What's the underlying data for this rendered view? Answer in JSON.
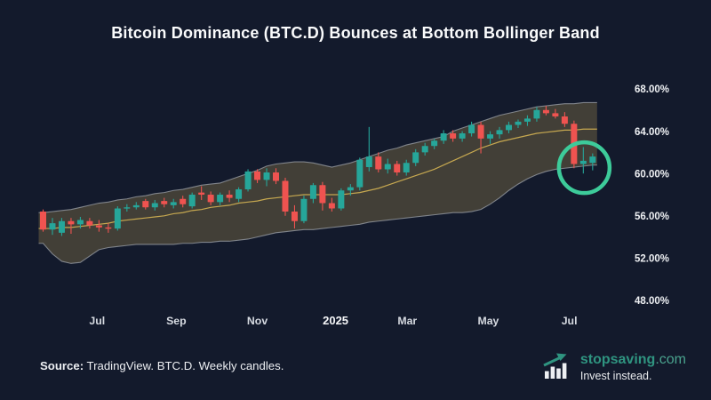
{
  "title": "Bitcoin Dominance (BTC.D) Bounces at Bottom Bollinger Band",
  "source": {
    "label": "Source:",
    "text": " TradingView. BTC.D. Weekly candles."
  },
  "brand": {
    "name": "stopsaving",
    "tld": ".com",
    "tagline": "Invest instead.",
    "logo_icon": "bar-chart-up-arrow-icon",
    "name_color": "#2f9480",
    "tld_color": "#4aa38e"
  },
  "colors": {
    "background": "#131a2c",
    "candle_up": "#26a69a",
    "candle_down": "#ef5350",
    "band_fill": "#454138",
    "band_edge": "#8f949b",
    "band_basis": "#c6a850",
    "axis_text": "#eef0f3",
    "month_text": "#d6dae1",
    "year_text": "#f5f6f8",
    "annotation": "#3dcb9a"
  },
  "chart_data": {
    "type": "candlestick_bollinger",
    "symbol": "BTC.D",
    "timeframe": "weekly",
    "title": "Bitcoin Dominance (BTC.D) Bounces at Bottom Bollinger Band",
    "grid": false,
    "y_axis_side": "right",
    "y_axis_range": [
      48,
      68
    ],
    "y_ticks": [
      {
        "label": "68.00%",
        "value": 68
      },
      {
        "label": "64.00%",
        "value": 64
      },
      {
        "label": "60.00%",
        "value": 60
      },
      {
        "label": "56.00%",
        "value": 56
      },
      {
        "label": "52.00%",
        "value": 52
      },
      {
        "label": "48.00%",
        "value": 48
      }
    ],
    "x_ticks": [
      {
        "label": "Jul",
        "i": 5.8,
        "year": false
      },
      {
        "label": "Sep",
        "i": 14.3,
        "year": false
      },
      {
        "label": "Nov",
        "i": 23.0,
        "year": false
      },
      {
        "label": "2025",
        "i": 31.4,
        "year": true
      },
      {
        "label": "Mar",
        "i": 39.1,
        "year": false
      },
      {
        "label": "May",
        "i": 47.8,
        "year": false
      },
      {
        "label": "Jul",
        "i": 56.5,
        "year": false
      }
    ],
    "candles": {
      "open": [
        56.4,
        54.7,
        54.4,
        55.5,
        55.2,
        55.5,
        55.1,
        54.9,
        54.8,
        56.7,
        56.8,
        57.4,
        56.8,
        57.4,
        57.0,
        57.6,
        56.9,
        58.2,
        58.0,
        57.3,
        58.0,
        57.6,
        58.5,
        60.2,
        59.4,
        60.1,
        59.3,
        56.4,
        55.5,
        57.6,
        58.9,
        57.2,
        56.7,
        58.4,
        58.7,
        60.6,
        61.6,
        60.4,
        60.9,
        60.1,
        61.0,
        62.0,
        62.6,
        63.1,
        63.8,
        63.3,
        63.8,
        64.6,
        63.3,
        63.7,
        64.1,
        64.6,
        64.9,
        65.2,
        66.0,
        65.7,
        65.4,
        64.7,
        60.9,
        61.0
      ],
      "high": [
        56.6,
        55.8,
        55.8,
        55.8,
        55.9,
        55.8,
        55.6,
        55.3,
        56.9,
        57.1,
        57.3,
        57.6,
        57.5,
        57.7,
        57.6,
        57.9,
        58.2,
        58.8,
        58.3,
        58.2,
        58.4,
        58.7,
        60.4,
        60.4,
        60.5,
        60.5,
        59.6,
        57.0,
        57.9,
        59.1,
        59.2,
        57.7,
        58.6,
        59.0,
        61.5,
        64.4,
        62.0,
        61.4,
        61.2,
        61.3,
        62.3,
        62.9,
        63.3,
        64.1,
        64.1,
        64.0,
        64.9,
        64.9,
        64.0,
        64.4,
        64.9,
        65.1,
        65.5,
        66.3,
        66.4,
        66.1,
        65.8,
        65.0,
        62.5,
        61.9
      ],
      "low": [
        54.5,
        54.2,
        54.1,
        54.3,
        54.8,
        54.8,
        54.5,
        54.4,
        54.6,
        56.4,
        56.6,
        56.6,
        56.5,
        56.8,
        56.7,
        56.8,
        56.7,
        57.5,
        57.0,
        57.0,
        57.3,
        57.3,
        58.3,
        59.1,
        58.8,
        59.0,
        56.0,
        54.8,
        55.3,
        57.2,
        56.5,
        56.4,
        56.5,
        57.9,
        58.4,
        60.2,
        60.1,
        60.0,
        59.8,
        59.8,
        60.7,
        61.7,
        62.3,
        62.8,
        63.0,
        63.0,
        63.5,
        61.9,
        62.8,
        63.3,
        63.8,
        64.3,
        64.5,
        64.9,
        65.5,
        65.2,
        64.4,
        60.5,
        60.0,
        60.3
      ],
      "close": [
        54.7,
        55.3,
        55.5,
        55.2,
        55.6,
        55.1,
        54.9,
        54.8,
        56.7,
        56.8,
        57.0,
        56.8,
        57.2,
        57.1,
        57.3,
        57.1,
        58.0,
        58.0,
        57.3,
        58.0,
        57.7,
        58.5,
        60.2,
        59.4,
        60.1,
        59.3,
        56.4,
        55.5,
        57.6,
        58.9,
        57.2,
        56.7,
        58.4,
        58.7,
        61.3,
        61.6,
        60.4,
        60.9,
        60.1,
        61.0,
        62.0,
        62.6,
        63.1,
        63.8,
        63.3,
        63.8,
        64.6,
        63.3,
        63.7,
        64.1,
        64.6,
        64.9,
        65.2,
        66.0,
        65.7,
        65.4,
        64.7,
        60.9,
        61.2,
        61.6
      ]
    },
    "bollinger": {
      "upper": [
        56.3,
        56.4,
        56.5,
        56.6,
        56.8,
        57.0,
        57.2,
        57.3,
        57.5,
        57.6,
        57.8,
        57.9,
        58.1,
        58.2,
        58.4,
        58.5,
        58.7,
        58.9,
        59.0,
        59.1,
        59.4,
        59.7,
        60.0,
        60.3,
        60.7,
        60.9,
        61.0,
        61.1,
        61.1,
        61.0,
        60.8,
        60.6,
        60.8,
        61.0,
        61.3,
        61.6,
        61.9,
        62.2,
        62.4,
        62.7,
        62.9,
        63.1,
        63.3,
        63.5,
        64.0,
        64.3,
        64.6,
        64.9,
        65.2,
        65.5,
        65.7,
        65.9,
        66.1,
        66.3,
        66.4,
        66.5,
        66.6,
        66.6,
        66.7,
        66.7
      ],
      "basis": [
        54.8,
        54.8,
        54.9,
        54.9,
        55.0,
        55.1,
        55.2,
        55.3,
        55.5,
        55.6,
        55.7,
        55.8,
        55.9,
        56.0,
        56.2,
        56.3,
        56.5,
        56.6,
        56.8,
        56.9,
        57.0,
        57.2,
        57.3,
        57.4,
        57.6,
        57.7,
        57.8,
        57.9,
        58.0,
        58.0,
        58.0,
        58.0,
        58.0,
        58.1,
        58.2,
        58.4,
        58.6,
        58.9,
        59.2,
        59.5,
        59.8,
        60.1,
        60.4,
        60.8,
        61.2,
        61.6,
        62.0,
        62.4,
        62.7,
        63.0,
        63.2,
        63.4,
        63.6,
        63.8,
        63.9,
        64.0,
        64.1,
        64.1,
        64.2,
        64.2
      ],
      "lower": [
        53.4,
        52.4,
        51.7,
        51.5,
        51.6,
        52.2,
        52.8,
        53.0,
        53.1,
        53.2,
        53.3,
        53.3,
        53.3,
        53.3,
        53.3,
        53.4,
        53.4,
        53.5,
        53.5,
        53.6,
        53.6,
        53.7,
        53.8,
        54.0,
        54.2,
        54.4,
        54.5,
        54.6,
        54.7,
        54.7,
        54.8,
        54.9,
        55.0,
        55.1,
        55.2,
        55.4,
        55.5,
        55.6,
        55.7,
        55.8,
        55.9,
        56.0,
        56.1,
        56.2,
        56.3,
        56.3,
        56.4,
        56.6,
        57.1,
        57.7,
        58.4,
        59.0,
        59.5,
        59.9,
        60.2,
        60.4,
        60.5,
        60.6,
        60.7,
        60.8
      ]
    },
    "annotation_circle": {
      "center_index": 58.1,
      "center_value": 60.55,
      "radius_px": 28.5,
      "color": "#3dcb9a",
      "meaning": "bounce at bottom Bollinger band"
    }
  }
}
